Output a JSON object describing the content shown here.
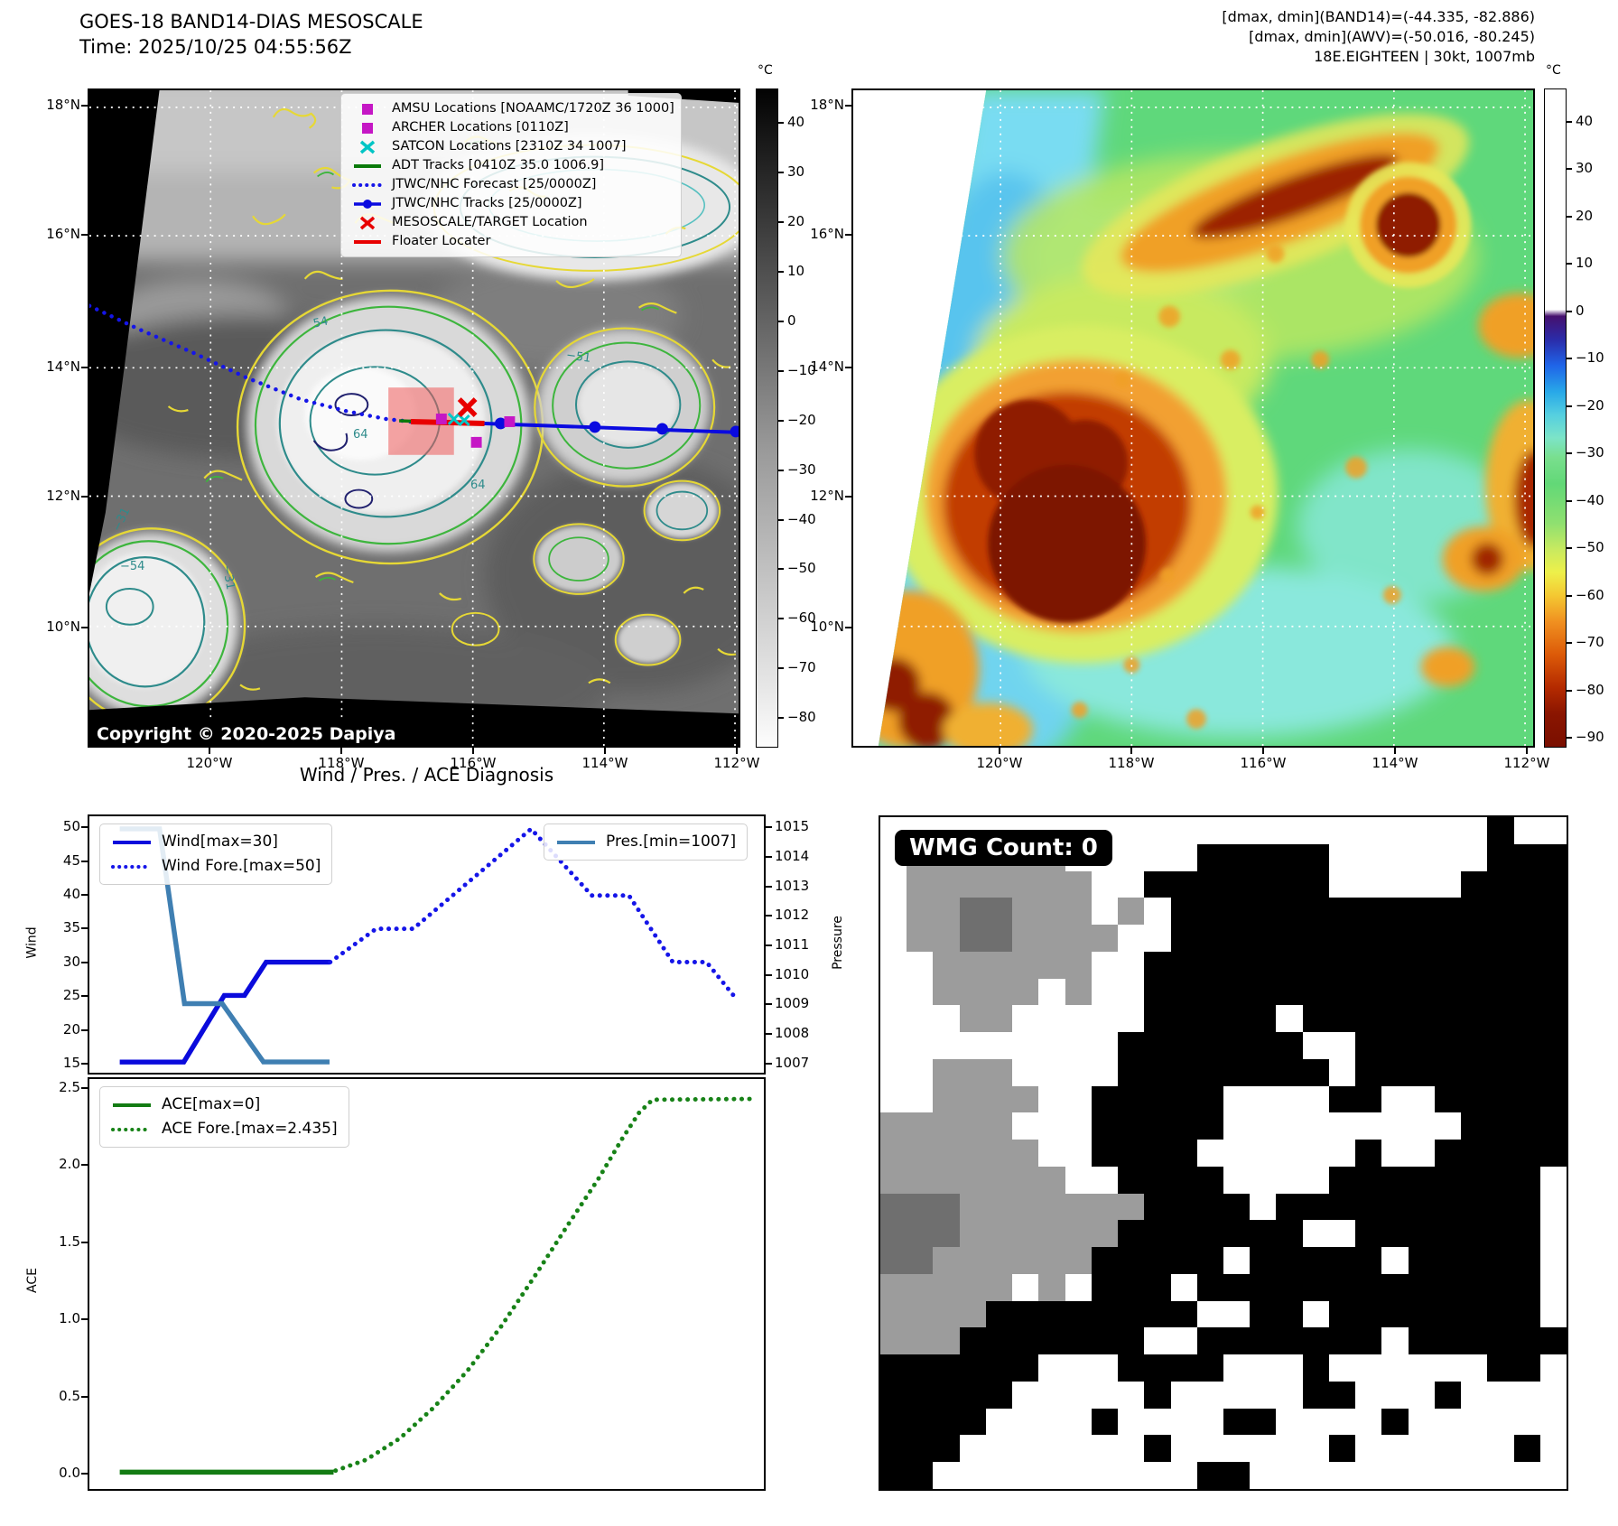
{
  "panel_band14": {
    "title_line1": "GOES-18 BAND14-DIAS MESOSCALE",
    "title_line2": "Time: 2025/10/25 04:55:56Z",
    "copyright": "Copyright © 2020-2025 Dapiya",
    "lat_ticks": [
      "18°N",
      "16°N",
      "14°N",
      "12°N",
      "10°N"
    ],
    "lon_ticks": [
      "120°W",
      "118°W",
      "116°W",
      "114°W",
      "112°W"
    ],
    "colorbar": {
      "unit": "°C",
      "ticks": [
        {
          "v": 40,
          "label": "40"
        },
        {
          "v": 30,
          "label": "30"
        },
        {
          "v": 20,
          "label": "20"
        },
        {
          "v": 10,
          "label": "10"
        },
        {
          "v": 0,
          "label": "0"
        },
        {
          "v": -10,
          "label": "−10"
        },
        {
          "v": -20,
          "label": "−20"
        },
        {
          "v": -30,
          "label": "−30"
        },
        {
          "v": -40,
          "label": "−40"
        },
        {
          "v": -50,
          "label": "−50"
        },
        {
          "v": -60,
          "label": "−60"
        },
        {
          "v": -70,
          "label": "−70"
        },
        {
          "v": -80,
          "label": "−80"
        }
      ]
    },
    "legend": [
      {
        "label": "AMSU Locations [NOAAMC/1720Z 36 1000]",
        "marker": "square",
        "color": "#c517c5"
      },
      {
        "label": "ARCHER Locations [0110Z]",
        "marker": "square",
        "color": "#c517c5"
      },
      {
        "label": "SATCON Locations [2310Z 34 1007]",
        "marker": "x",
        "color": "#00c5c5"
      },
      {
        "label": "ADT Tracks [0410Z 35.0 1006.9]",
        "marker": "line",
        "color": "#0a7a0a"
      },
      {
        "label": "JTWC/NHC Forecast [25/0000Z]",
        "marker": "dotted",
        "color": "#1515e8"
      },
      {
        "label": "JTWC/NHC Tracks [25/0000Z]",
        "marker": "line-dot",
        "color": "#0a0ae0"
      },
      {
        "label": "MESOSCALE/TARGET Location",
        "marker": "x",
        "color": "#e80000"
      },
      {
        "label": "Floater Locater",
        "marker": "line",
        "color": "#e80000"
      }
    ],
    "contour_labels": [
      "54",
      "64",
      "64",
      "−54",
      "−31",
      "−31",
      "−51"
    ]
  },
  "panel_awv": {
    "header_line1": "[dmax, dmin](BAND14)=(-44.335, -82.886)",
    "header_line2": "[dmax, dmin](AWV)=(-50.016, -80.245)",
    "header_line3": "18E.EIGHTEEN | 30kt, 1007mb",
    "lat_ticks": [
      "18°N",
      "16°N",
      "14°N",
      "12°N",
      "10°N"
    ],
    "lon_ticks": [
      "120°W",
      "118°W",
      "116°W",
      "114°W",
      "112°W"
    ],
    "colorbar": {
      "unit": "°C",
      "ticks": [
        {
          "v": 40,
          "label": "40"
        },
        {
          "v": 30,
          "label": "30"
        },
        {
          "v": 20,
          "label": "20"
        },
        {
          "v": 10,
          "label": "10"
        },
        {
          "v": 0,
          "label": "0"
        },
        {
          "v": -10,
          "label": "−10"
        },
        {
          "v": -20,
          "label": "−20"
        },
        {
          "v": -30,
          "label": "−30"
        },
        {
          "v": -40,
          "label": "−40"
        },
        {
          "v": -50,
          "label": "−50"
        },
        {
          "v": -60,
          "label": "−60"
        },
        {
          "v": -70,
          "label": "−70"
        },
        {
          "v": -80,
          "label": "−80"
        },
        {
          "v": -90,
          "label": "−90"
        }
      ]
    }
  },
  "chart_data": [
    {
      "id": "wind_pres",
      "type": "line",
      "title": "Wind / Pres. / ACE Diagnosis",
      "ylabel": "Wind",
      "ylabel_right": "Pressure",
      "ylim": [
        13.4,
        51.9
      ],
      "ylim_right": [
        1006.63,
        1015.43
      ],
      "yticks": [
        {
          "v": 15,
          "label": "15"
        },
        {
          "v": 20,
          "label": "20"
        },
        {
          "v": 25,
          "label": "25"
        },
        {
          "v": 30,
          "label": "30"
        },
        {
          "v": 35,
          "label": "35"
        },
        {
          "v": 40,
          "label": "40"
        },
        {
          "v": 45,
          "label": "45"
        },
        {
          "v": 50,
          "label": "50"
        }
      ],
      "yticks_right": [
        {
          "v": 1007,
          "label": "1007"
        },
        {
          "v": 1008,
          "label": "1008"
        },
        {
          "v": 1009,
          "label": "1009"
        },
        {
          "v": 1010,
          "label": "1010"
        },
        {
          "v": 1011,
          "label": "1011"
        },
        {
          "v": 1012,
          "label": "1012"
        },
        {
          "v": 1013,
          "label": "1013"
        },
        {
          "v": 1014,
          "label": "1014"
        },
        {
          "v": 1015,
          "label": "1015"
        }
      ],
      "x_axis_note": "time, normalized 0-1, no tick labels shown",
      "series": [
        {
          "name": "Wind[max=30]",
          "axis": "left",
          "style": "solid",
          "color": "#0a0adc",
          "points": [
            [
              0.045,
              15
            ],
            [
              0.14,
              15
            ],
            [
              0.2,
              25
            ],
            [
              0.23,
              25
            ],
            [
              0.262,
              30
            ],
            [
              0.357,
              30
            ]
          ]
        },
        {
          "name": "Wind Fore.[max=50]",
          "axis": "left",
          "style": "dotted",
          "color": "#1515e8",
          "points": [
            [
              0.357,
              30
            ],
            [
              0.425,
              35
            ],
            [
              0.48,
              35
            ],
            [
              0.655,
              50
            ],
            [
              0.745,
              40
            ],
            [
              0.8,
              40
            ],
            [
              0.865,
              30
            ],
            [
              0.915,
              30
            ],
            [
              0.955,
              25
            ]
          ]
        },
        {
          "name": "Pres.[min=1007]",
          "axis": "right",
          "style": "solid",
          "color": "#3f7fb2",
          "points": [
            [
              0.045,
              1015
            ],
            [
              0.104,
              1015
            ],
            [
              0.141,
              1009
            ],
            [
              0.197,
              1009
            ],
            [
              0.258,
              1007
            ],
            [
              0.356,
              1007
            ]
          ]
        }
      ]
    },
    {
      "id": "ace",
      "type": "line",
      "ylabel": "ACE",
      "ylim": [
        -0.11,
        2.57
      ],
      "yticks": [
        {
          "v": 0,
          "label": "0.0"
        },
        {
          "v": 0.5,
          "label": "0.5"
        },
        {
          "v": 1,
          "label": "1.0"
        },
        {
          "v": 1.5,
          "label": "1.5"
        },
        {
          "v": 2,
          "label": "2.0"
        },
        {
          "v": 2.5,
          "label": "2.5"
        }
      ],
      "series": [
        {
          "name": "ACE[max=0]",
          "axis": "left",
          "style": "solid",
          "color": "#137c13",
          "points": [
            [
              0.045,
              0
            ],
            [
              0.362,
              0
            ]
          ]
        },
        {
          "name": "ACE Fore.[max=2.435]",
          "axis": "left",
          "style": "dotted",
          "color": "#178217",
          "points": [
            [
              0.365,
              0.01
            ],
            [
              0.41,
              0.08
            ],
            [
              0.46,
              0.22
            ],
            [
              0.51,
              0.42
            ],
            [
              0.56,
              0.66
            ],
            [
              0.61,
              0.95
            ],
            [
              0.66,
              1.28
            ],
            [
              0.71,
              1.62
            ],
            [
              0.755,
              1.92
            ],
            [
              0.79,
              2.18
            ],
            [
              0.815,
              2.35
            ],
            [
              0.835,
              2.435
            ],
            [
              0.985,
              2.44
            ]
          ]
        }
      ]
    }
  ],
  "wmg": {
    "label": "WMG Count: 0",
    "palette": {
      "W": "#ffffff",
      "G": "#9c9c9c",
      "D": "#6f6f6f",
      "B": "#000000"
    },
    "grid": [
      "WWWWWWWWWWWWWWWWWWWWWWWBWW",
      "WGGGGGGWWWWWBBBBBWWWWWWBBB",
      "WGGGGGGGWWBBBBBBBWWWWWBBBB",
      "WGGDDGGGWGWBBBBBBBBBBBBBBB",
      "WGGDDGGGGWWBBBBBBBBBBBBBBB",
      "WWGGGGGGWWBBBBBBBBBBBBBBBB",
      "WWGGGGWGWWBBBBBBBBBBBBBBBB",
      "WWWGGWWWWWBBBBBWBBBBBBBBBB",
      "WWWWWWWWWBBBBBBBWWBBBBBBBB",
      "WWGGGWWWWBBBBBBBBWBBBBBBBB",
      "WWGGGGWWBBBBBWWWWBBWWBBBBB",
      "GGGGGWWWBBBBBWWWWWWWWWBBBB",
      "GGGGGGWWBBBBWWWWWWBWWBBBBB",
      "GGGGGGGWWBBBBWWWWBBBBBBBBW",
      "DDDGGGGGGGBBBBWBBBBBBBBBBW",
      "DDDGGGGGGBBBBBBBWWBBBBBBBW",
      "DDGGGGGGBBBBBWBBBBBWBBBBBW",
      "GGGGGWGWBBBWBBBBBBBBBBBBBW",
      "GGGGBBBBBBBBWWBBWBBBBBBBBW",
      "GGGBBBBBBBWWBBBBBBBWBBBBBB",
      "BBBBBBWWWBBBBWWWBWWWWWWBBW",
      "BBBBBWWWWWBWWWWWBBWWWBWWWW",
      "BBBBWWWWBWWWWBBWWWWBWWWWWW",
      "BBBWWWWWWWBWWWWWWBWWWWWWBW",
      "BBWWWWWWWWWWBBWWWWWWWWWWWW"
    ]
  }
}
